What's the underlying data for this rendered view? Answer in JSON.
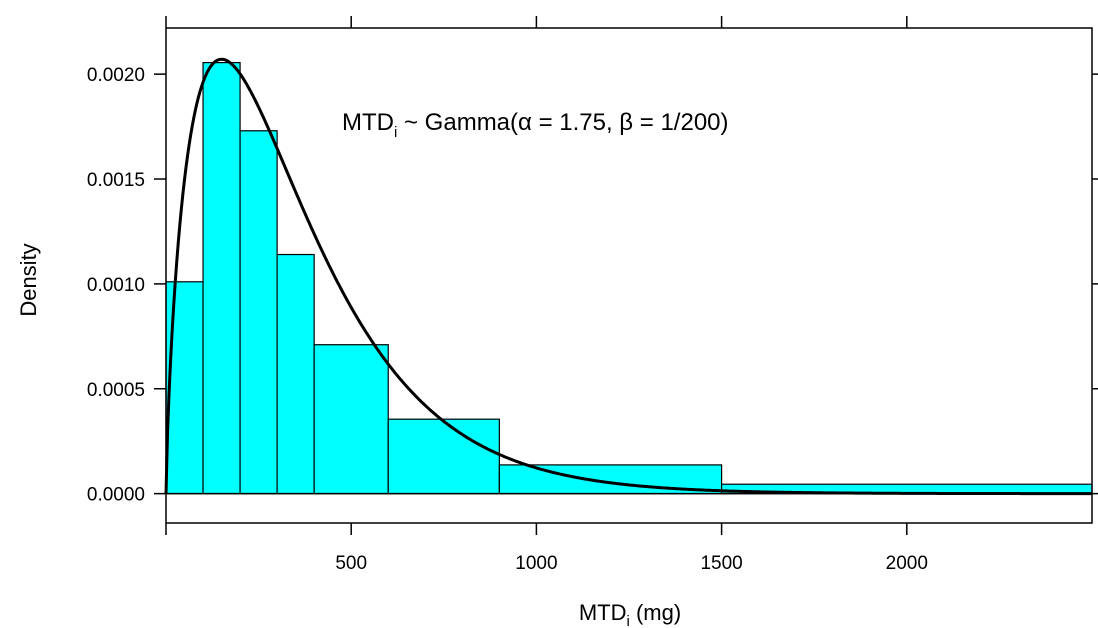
{
  "chart_data": {
    "type": "bar",
    "subtype": "histogram-with-density-curve",
    "xlabel": {
      "base": "MTD",
      "sub": "i",
      "suffix": " (mg)"
    },
    "ylabel": "Density",
    "annotation": {
      "lhs_base": "MTD",
      "lhs_sub": "i",
      "rhs": " ~ Gamma(α = 1.75, β = 1/200)"
    },
    "xlim": [
      0,
      2500
    ],
    "ylim": [
      -0.00014,
      0.00222
    ],
    "x_ticks": [
      500,
      1000,
      1500,
      2000
    ],
    "x_tick_labels": [
      "500",
      "1000",
      "1500",
      "2000"
    ],
    "y_ticks": [
      0,
      0.0005,
      0.001,
      0.0015,
      0.002
    ],
    "y_tick_labels": [
      "0.0000",
      "0.0005",
      "0.0010",
      "0.0015",
      "0.0020"
    ],
    "bins": [
      {
        "x0": 0,
        "x1": 100,
        "density": 0.00101
      },
      {
        "x0": 100,
        "x1": 200,
        "density": 0.002055
      },
      {
        "x0": 200,
        "x1": 300,
        "density": 0.00173
      },
      {
        "x0": 300,
        "x1": 400,
        "density": 0.00114
      },
      {
        "x0": 400,
        "x1": 600,
        "density": 0.00071
      },
      {
        "x0": 600,
        "x1": 900,
        "density": 0.000355
      },
      {
        "x0": 900,
        "x1": 1500,
        "density": 0.000137
      },
      {
        "x0": 1500,
        "x1": 2500,
        "density": 4.5e-05
      }
    ],
    "curve": {
      "distribution": "gamma",
      "shape": 1.75,
      "rate": 0.005
    },
    "colors": {
      "bar_fill": "#00ffff",
      "bar_stroke": "#000000",
      "curve": "#000000"
    },
    "grid": false
  }
}
